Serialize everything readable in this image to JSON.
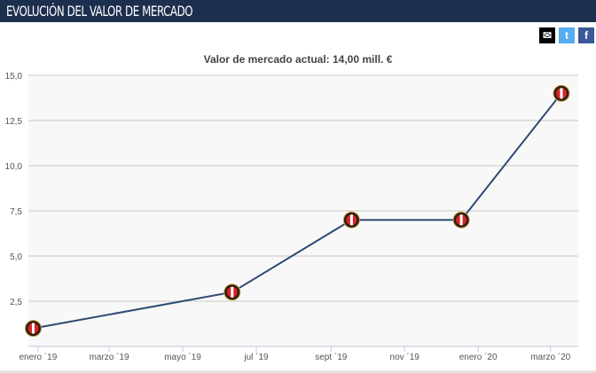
{
  "header": {
    "title": "EVOLUCIÓN DEL VALOR DE MERCADO"
  },
  "share": {
    "email_icon": "envelope-icon",
    "twitter_icon": "twitter-icon",
    "facebook_icon": "facebook-icon",
    "twitter_color": "#55acee",
    "facebook_color": "#3b5998"
  },
  "chart_data": {
    "type": "line",
    "title": "Valor de mercado actual: 14,00 mill. €",
    "xlabel": "",
    "ylabel": "",
    "ylim": [
      0,
      15
    ],
    "yticks": [
      "2,5",
      "5,0",
      "7,5",
      "10,0",
      "12,5",
      "15,0"
    ],
    "ytick_values": [
      2.5,
      5,
      7.5,
      10,
      12.5,
      15
    ],
    "xlim": [
      "2018-12-24",
      "2020-03-24"
    ],
    "xticks": [
      {
        "date": "2019-01-01",
        "label": "enero ´19"
      },
      {
        "date": "2019-03-01",
        "label": "marzo ´19"
      },
      {
        "date": "2019-05-01",
        "label": "mayo ´19"
      },
      {
        "date": "2019-07-01",
        "label": "jul ´19"
      },
      {
        "date": "2019-09-01",
        "label": "sept ´19"
      },
      {
        "date": "2019-11-01",
        "label": "nov ´19"
      },
      {
        "date": "2020-01-01",
        "label": "enero ´20"
      },
      {
        "date": "2020-03-01",
        "label": "marzo ´20"
      }
    ],
    "series": [
      {
        "name": "Valor de mercado",
        "color": "#2f4a72",
        "points": [
          {
            "x": "2018-12-28",
            "y": 1.0
          },
          {
            "x": "2019-06-11",
            "y": 3.0
          },
          {
            "x": "2019-09-18",
            "y": 7.0
          },
          {
            "x": "2019-12-18",
            "y": 7.0
          },
          {
            "x": "2020-03-10",
            "y": 14.0
          }
        ]
      }
    ],
    "grid": true
  }
}
